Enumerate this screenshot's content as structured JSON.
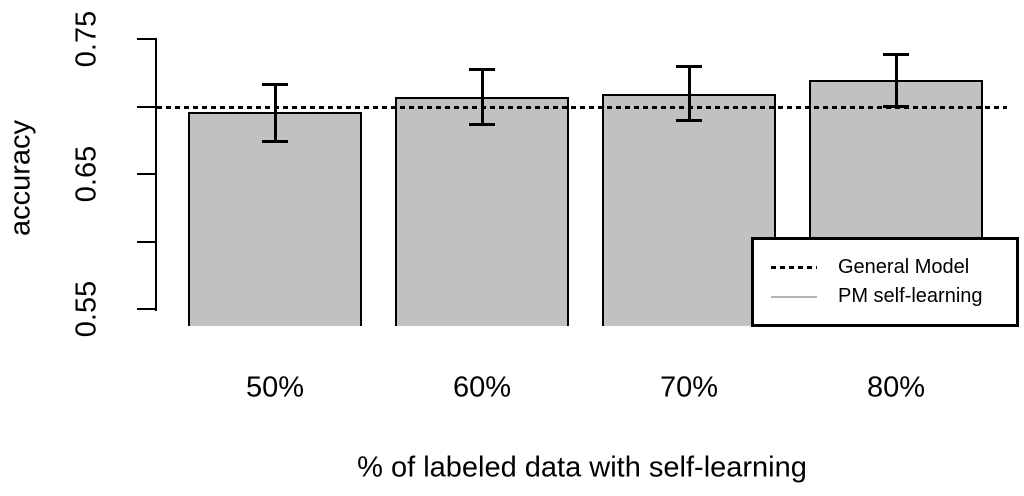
{
  "chart_data": {
    "type": "bar",
    "title": "",
    "xlabel": "% of labeled data with self-learning",
    "ylabel": "accuracy",
    "categories": [
      "50%",
      "60%",
      "70%",
      "80%"
    ],
    "series": [
      {
        "name": "PM self-learning",
        "values": [
          0.696,
          0.707,
          0.709,
          0.72
        ],
        "error_low": [
          0.674,
          0.686,
          0.689,
          0.7
        ],
        "error_high": [
          0.717,
          0.728,
          0.73,
          0.739
        ]
      }
    ],
    "reference_line": {
      "name": "General Model",
      "value": 0.7,
      "style": "dotted"
    },
    "ylim": [
      0.55,
      0.75
    ],
    "yticks": [
      0.75,
      0.7,
      0.65,
      0.6,
      0.55
    ],
    "ytick_labels": [
      "0.75",
      "",
      "0.65",
      "",
      "0.55"
    ],
    "grid": false,
    "legend_position": "bottom-right",
    "colors": {
      "bar_fill": "#c1c1c1",
      "bar_border": "#000000",
      "reference_line": "#000000",
      "legend_gray_line": "#b4b4b4",
      "text": "#000000",
      "background": "#ffffff"
    }
  },
  "legend": {
    "entries": [
      {
        "label": "General Model",
        "sample": "dotted-black-line"
      },
      {
        "label": "PM self-learning",
        "sample": "solid-gray-line"
      }
    ]
  }
}
